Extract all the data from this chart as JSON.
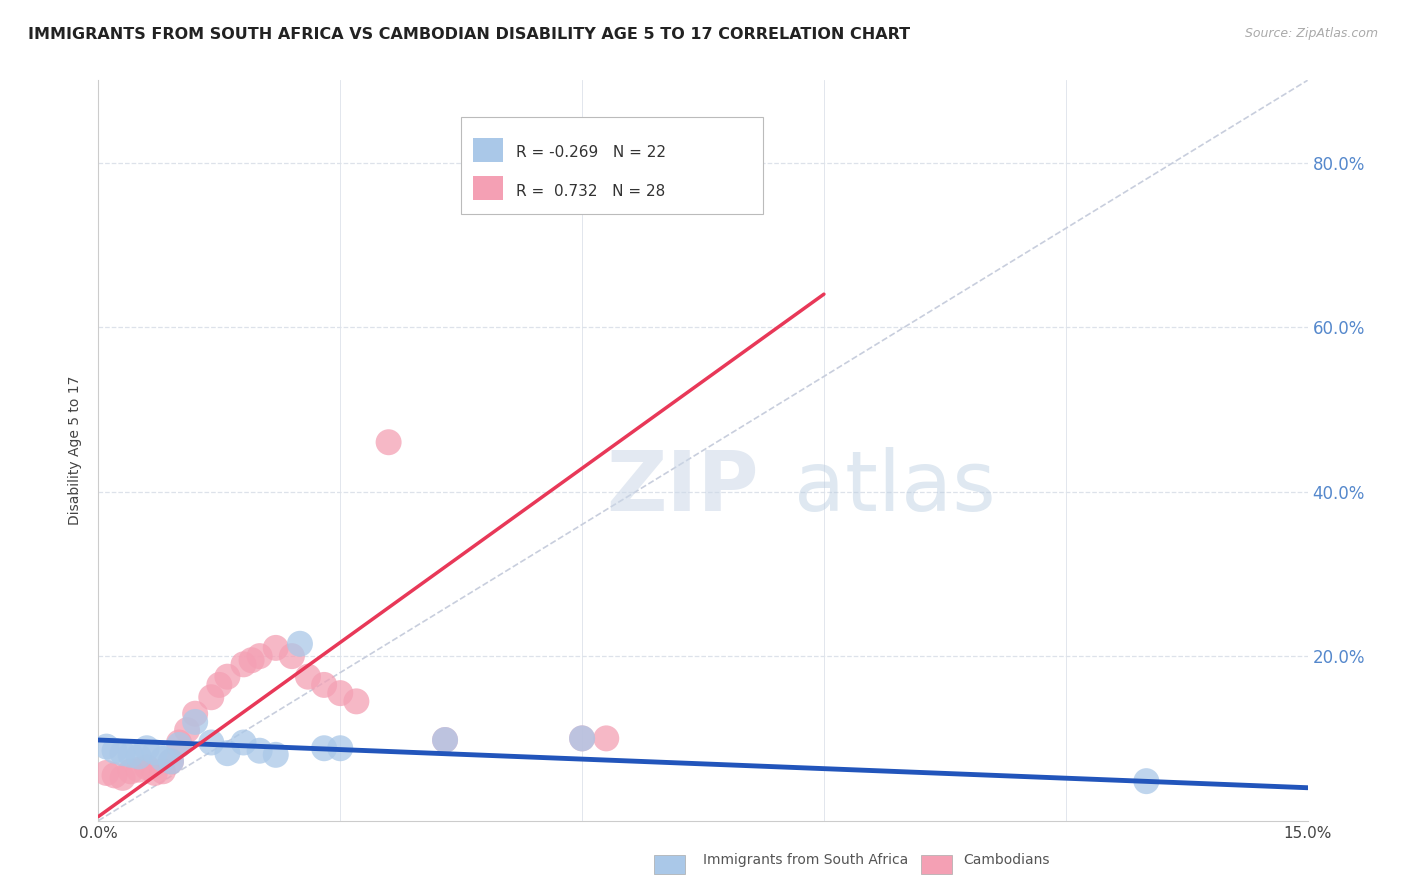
{
  "title": "IMMIGRANTS FROM SOUTH AFRICA VS CAMBODIAN DISABILITY AGE 5 TO 17 CORRELATION CHART",
  "source": "Source: ZipAtlas.com",
  "ylabel": "Disability Age 5 to 17",
  "xlim": [
    0.0,
    0.15
  ],
  "ylim": [
    0.0,
    0.9
  ],
  "blue_scatter_x": [
    0.001,
    0.002,
    0.003,
    0.004,
    0.005,
    0.006,
    0.007,
    0.008,
    0.009,
    0.01,
    0.012,
    0.014,
    0.016,
    0.018,
    0.02,
    0.022,
    0.025,
    0.028,
    0.03,
    0.043,
    0.06,
    0.13
  ],
  "blue_scatter_y": [
    0.09,
    0.085,
    0.082,
    0.08,
    0.078,
    0.088,
    0.083,
    0.075,
    0.072,
    0.092,
    0.12,
    0.095,
    0.082,
    0.095,
    0.085,
    0.08,
    0.215,
    0.088,
    0.088,
    0.098,
    0.1,
    0.048
  ],
  "pink_scatter_x": [
    0.001,
    0.002,
    0.003,
    0.004,
    0.005,
    0.006,
    0.007,
    0.008,
    0.009,
    0.01,
    0.011,
    0.012,
    0.014,
    0.015,
    0.016,
    0.018,
    0.019,
    0.02,
    0.022,
    0.024,
    0.026,
    0.028,
    0.03,
    0.032,
    0.036,
    0.043,
    0.06,
    0.063
  ],
  "pink_scatter_y": [
    0.058,
    0.055,
    0.052,
    0.06,
    0.062,
    0.065,
    0.058,
    0.06,
    0.072,
    0.095,
    0.11,
    0.13,
    0.15,
    0.165,
    0.175,
    0.19,
    0.195,
    0.2,
    0.21,
    0.2,
    0.175,
    0.165,
    0.155,
    0.145,
    0.46,
    0.098,
    0.1,
    0.1
  ],
  "blue_line_x0": 0.0,
  "blue_line_y0": 0.098,
  "blue_line_x1": 0.15,
  "blue_line_y1": 0.04,
  "pink_line_x0": 0.0,
  "pink_line_y0": 0.005,
  "pink_line_x1": 0.09,
  "pink_line_y1": 0.64,
  "blue_R": "-0.269",
  "blue_N": "22",
  "pink_R": "0.732",
  "pink_N": "28",
  "blue_color": "#aac8e8",
  "pink_color": "#f4a0b4",
  "blue_line_color": "#2255bb",
  "pink_line_color": "#e83858",
  "diagonal_color": "#c8cedd",
  "background_color": "#ffffff",
  "grid_color": "#dde2ea",
  "right_axis_color": "#5588cc",
  "ytick_right": [
    0.2,
    0.4,
    0.6,
    0.8
  ],
  "ytick_right_labels": [
    "20.0%",
    "40.0%",
    "60.0%",
    "80.0%"
  ],
  "xtick_positions": [
    0.0,
    0.03,
    0.06,
    0.09,
    0.12,
    0.15
  ],
  "xtick_labels": [
    "0.0%",
    "",
    "",
    "",
    "",
    "15.0%"
  ]
}
